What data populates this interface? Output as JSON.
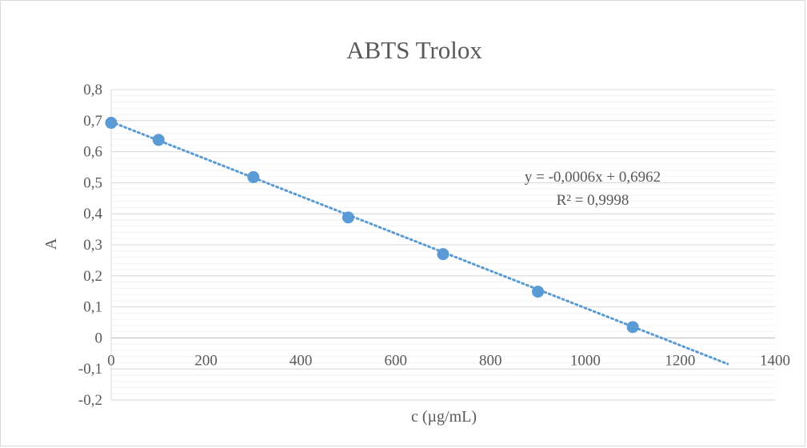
{
  "chart_data": {
    "type": "scatter",
    "title": "ABTS Trolox",
    "xlabel": "c (µg/mL)",
    "ylabel": "A",
    "xlim": [
      0,
      1400
    ],
    "ylim": [
      -0.2,
      0.8
    ],
    "x_ticks": [
      0,
      200,
      400,
      600,
      800,
      1000,
      1200,
      1400
    ],
    "x_tick_labels": [
      "0",
      "200",
      "400",
      "600",
      "800",
      "1000",
      "1200",
      "1400"
    ],
    "y_ticks": [
      -0.2,
      -0.1,
      0,
      0.1,
      0.2,
      0.3,
      0.4,
      0.5,
      0.6,
      0.7,
      0.8
    ],
    "y_tick_labels": [
      "-0,2",
      "-0,1",
      "0",
      "0,1",
      "0,2",
      "0,3",
      "0,4",
      "0,5",
      "0,6",
      "0,7",
      "0,8"
    ],
    "grid": true,
    "minor_grid": true,
    "legend": "none",
    "series": [
      {
        "x": [
          0,
          100,
          300,
          500,
          700,
          900,
          1100
        ],
        "y": [
          0.693,
          0.638,
          0.518,
          0.388,
          0.27,
          0.149,
          0.035
        ],
        "color": "#5b9bd5"
      }
    ],
    "trendline": {
      "type": "linear",
      "slope": -0.0006,
      "intercept": 0.6962,
      "x_range": [
        0,
        1300
      ],
      "style": "dotted",
      "color": "#5b9bd5",
      "equation": "y = -0,0006x + 0,6962",
      "r_squared": "R² = 0,9998"
    }
  }
}
